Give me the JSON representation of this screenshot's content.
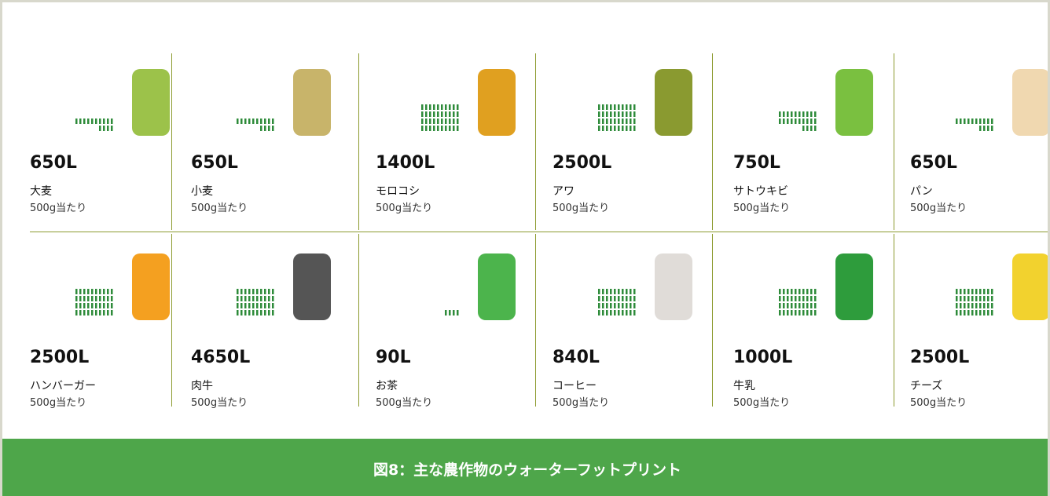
{
  "items": [
    {
      "amount": "650L",
      "name": "大麦",
      "unit": "500g当たり"
    },
    {
      "amount": "650L",
      "name": "小麦",
      "unit": "500g当たり"
    },
    {
      "amount": "1400L",
      "name": "モロコシ",
      "unit": "500g当たり"
    },
    {
      "amount": "2500L",
      "name": "アワ",
      "unit": "500g当たり"
    },
    {
      "amount": "750L",
      "name": "サトウキビ",
      "unit": "500g当たり"
    },
    {
      "amount": "650L",
      "name": "パン",
      "unit": "500g当たり"
    },
    {
      "amount": "2500L",
      "name": "ハンバーガー",
      "unit": "500g当たり"
    },
    {
      "amount": "4650L",
      "name": "肉牛",
      "unit": "500g当たり"
    },
    {
      "amount": "90L",
      "name": "お茶",
      "unit": "500g当たり"
    },
    {
      "amount": "840L",
      "name": "コーヒー",
      "unit": "500g当たり"
    },
    {
      "amount": "1000L",
      "name": "牛乳",
      "unit": "500g当たり"
    },
    {
      "amount": "2500L",
      "name": "チーズ",
      "unit": "500g当たり"
    }
  ],
  "caption": "図8：主な農作物のウォーターフットプリント"
}
